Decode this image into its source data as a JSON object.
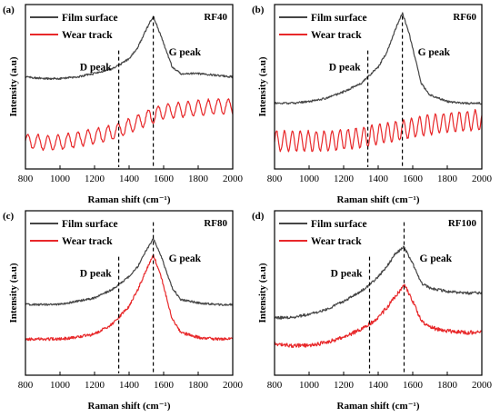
{
  "colors": {
    "film_surface": "#454545",
    "wear_track": "#e8282a",
    "axes": "#000000"
  },
  "chart_data": [
    {
      "type": "line",
      "panel": "(a)",
      "label": "RF40",
      "xlabel": "Raman shift (cm⁻¹)",
      "ylabel": "Intensity (a.u)",
      "xlim": [
        800,
        2000
      ],
      "xticks": [
        "800",
        "1000",
        "1200",
        "1400",
        "1600",
        "1800",
        "2000"
      ],
      "grid": false,
      "legend": "top-left",
      "annotations": [
        {
          "text": "D peak",
          "x": 1340
        },
        {
          "text": "G peak",
          "x": 1540
        }
      ],
      "series": [
        {
          "name": "Film surface",
          "x": [
            800,
            900,
            1000,
            1100,
            1200,
            1300,
            1340,
            1400,
            1450,
            1500,
            1540,
            1580,
            1650,
            1700,
            1800,
            1900,
            2000
          ],
          "y": [
            0.56,
            0.55,
            0.55,
            0.56,
            0.58,
            0.61,
            0.63,
            0.67,
            0.74,
            0.85,
            0.93,
            0.82,
            0.62,
            0.58,
            0.58,
            0.57,
            0.56
          ]
        },
        {
          "name": "Wear track",
          "x": [
            800,
            900,
            1000,
            1100,
            1200,
            1300,
            1400,
            1500,
            1600,
            1700,
            1800,
            1900,
            2000
          ],
          "y": [
            0.17,
            0.16,
            0.16,
            0.18,
            0.2,
            0.22,
            0.26,
            0.31,
            0.35,
            0.36,
            0.37,
            0.38,
            0.38
          ]
        }
      ]
    },
    {
      "type": "line",
      "panel": "(b)",
      "label": "RF60",
      "xlabel": "Raman shift (cm⁻¹)",
      "ylabel": "Intensity (a.u)",
      "xlim": [
        800,
        2000
      ],
      "xticks": [
        "800",
        "1000",
        "1200",
        "1400",
        "1600",
        "1800",
        "2000"
      ],
      "grid": false,
      "legend": "top-left",
      "annotations": [
        {
          "text": "D peak",
          "x": 1340
        },
        {
          "text": "G peak",
          "x": 1540
        }
      ],
      "series": [
        {
          "name": "Film surface",
          "x": [
            800,
            900,
            1000,
            1100,
            1200,
            1300,
            1340,
            1400,
            1450,
            1500,
            1540,
            1580,
            1650,
            1700,
            1800,
            1900,
            2000
          ],
          "y": [
            0.4,
            0.4,
            0.41,
            0.43,
            0.47,
            0.52,
            0.56,
            0.62,
            0.71,
            0.85,
            0.95,
            0.82,
            0.52,
            0.45,
            0.41,
            0.4,
            0.4
          ]
        },
        {
          "name": "Wear track",
          "x": [
            800,
            900,
            1000,
            1100,
            1200,
            1300,
            1400,
            1500,
            1600,
            1700,
            1800,
            1900,
            2000
          ],
          "y": [
            0.17,
            0.17,
            0.17,
            0.17,
            0.18,
            0.19,
            0.21,
            0.23,
            0.25,
            0.27,
            0.28,
            0.29,
            0.3
          ]
        }
      ]
    },
    {
      "type": "line",
      "panel": "(c)",
      "label": "RF80",
      "xlabel": "Raman shift (cm⁻¹)",
      "ylabel": "Intensity (a.u)",
      "xlim": [
        800,
        2000
      ],
      "xticks": [
        "800",
        "1000",
        "1200",
        "1400",
        "1600",
        "1800",
        "2000"
      ],
      "grid": false,
      "legend": "top-left",
      "annotations": [
        {
          "text": "D peak",
          "x": 1340
        },
        {
          "text": "G peak",
          "x": 1540
        }
      ],
      "series": [
        {
          "name": "Film surface",
          "x": [
            800,
            900,
            1000,
            1100,
            1200,
            1300,
            1340,
            1400,
            1450,
            1500,
            1540,
            1580,
            1650,
            1700,
            1800,
            1900,
            2000
          ],
          "y": [
            0.43,
            0.43,
            0.43,
            0.45,
            0.47,
            0.52,
            0.55,
            0.6,
            0.66,
            0.76,
            0.83,
            0.74,
            0.53,
            0.46,
            0.44,
            0.43,
            0.43
          ]
        },
        {
          "name": "Wear track",
          "x": [
            800,
            900,
            1000,
            1100,
            1200,
            1300,
            1340,
            1400,
            1450,
            1500,
            1540,
            1580,
            1650,
            1700,
            1800,
            1900,
            2000
          ],
          "y": [
            0.22,
            0.22,
            0.22,
            0.23,
            0.25,
            0.31,
            0.35,
            0.42,
            0.52,
            0.64,
            0.73,
            0.62,
            0.34,
            0.26,
            0.23,
            0.22,
            0.22
          ]
        }
      ]
    },
    {
      "type": "line",
      "panel": "(d)",
      "label": "RF100",
      "xlabel": "Raman shift (cm⁻¹)",
      "ylabel": "Intensity (a.u)",
      "xlim": [
        800,
        2000
      ],
      "xticks": [
        "800",
        "1000",
        "1200",
        "1400",
        "1600",
        "1800",
        "2000"
      ],
      "grid": false,
      "legend": "top-left",
      "annotations": [
        {
          "text": "D peak",
          "x": 1350
        },
        {
          "text": "G peak",
          "x": 1550
        }
      ],
      "series": [
        {
          "name": "Film surface",
          "x": [
            800,
            900,
            1000,
            1100,
            1200,
            1300,
            1350,
            1400,
            1450,
            1500,
            1550,
            1600,
            1650,
            1700,
            1800,
            1900,
            2000
          ],
          "y": [
            0.35,
            0.35,
            0.37,
            0.4,
            0.45,
            0.51,
            0.55,
            0.6,
            0.66,
            0.74,
            0.78,
            0.68,
            0.56,
            0.53,
            0.51,
            0.5,
            0.5
          ]
        },
        {
          "name": "Wear track",
          "x": [
            800,
            900,
            1000,
            1100,
            1200,
            1300,
            1350,
            1400,
            1450,
            1500,
            1550,
            1600,
            1650,
            1700,
            1800,
            1900,
            2000
          ],
          "y": [
            0.19,
            0.18,
            0.18,
            0.2,
            0.23,
            0.28,
            0.31,
            0.35,
            0.41,
            0.48,
            0.55,
            0.45,
            0.33,
            0.29,
            0.27,
            0.26,
            0.26
          ]
        }
      ]
    }
  ]
}
